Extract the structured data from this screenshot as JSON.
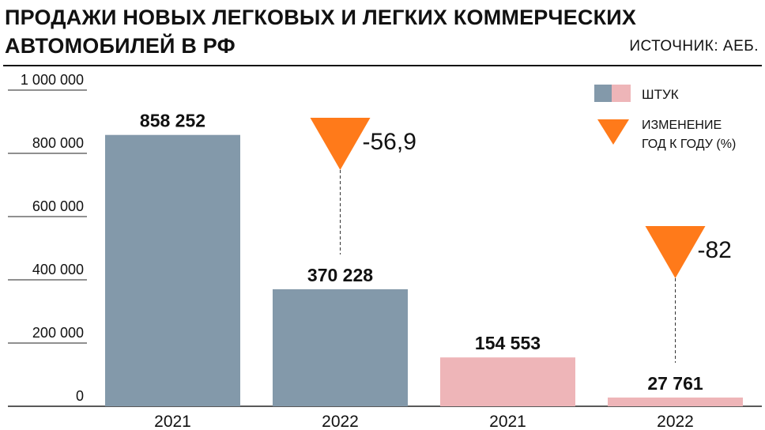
{
  "header": {
    "title": "ПРОДАЖИ НОВЫХ ЛЕГКОВЫХ И ЛЕГКИХ КОММЕРЧЕСКИХ АВТОМОБИЛЕЙ В РФ",
    "source": "ИСТОЧНИК: АЕБ."
  },
  "legend": {
    "units_label": "ШТУК",
    "change_label_line1": "ИЗМЕНЕНИЕ",
    "change_label_line2": "ГОД К ГОДУ (%)"
  },
  "colors": {
    "group1": "#8399aa",
    "group2": "#eeb5b8",
    "arrow": "#ff7a1a",
    "grid": "#222222",
    "text": "#111111"
  },
  "chart_data": {
    "type": "bar",
    "categories": [
      "2021",
      "2022",
      "2021",
      "2022"
    ],
    "values": [
      858252,
      370228,
      154553,
      27761
    ],
    "value_labels": [
      "858 252",
      "370 228",
      "154 553",
      "27 761"
    ],
    "bar_groups": [
      0,
      0,
      1,
      1
    ],
    "ylim": [
      0,
      1000000
    ],
    "yticks": [
      0,
      200000,
      400000,
      600000,
      800000,
      1000000
    ],
    "ytick_labels": [
      "0",
      "200 000",
      "400 000",
      "600 000",
      "800 000",
      "1 000 000"
    ],
    "grid": true,
    "legend_position": "top-right",
    "annotations": [
      {
        "bar_index": 1,
        "text": "-56,9",
        "value": -56.9
      },
      {
        "bar_index": 3,
        "text": "-82",
        "value": -82
      }
    ]
  }
}
